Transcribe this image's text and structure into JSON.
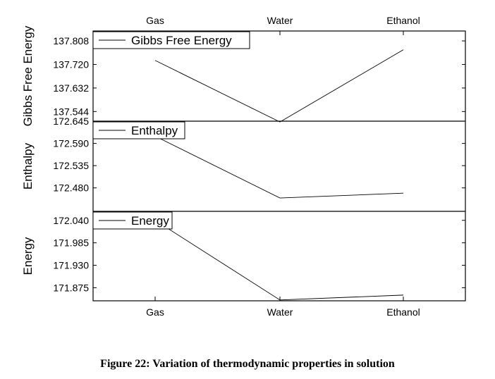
{
  "caption": "Figure 22: Variation of thermodynamic properties in solution",
  "chart_data": {
    "type": "line",
    "categories": [
      "Gas",
      "Water",
      "Ethanol"
    ],
    "top_xlabels": [
      "Gas",
      "Water",
      "Ethanol"
    ],
    "bottom_xlabels": [
      "Gas",
      "Water",
      "Ethanol"
    ],
    "panels": [
      {
        "ylabel": "Gibbs Free Energy",
        "legend": "Gibbs Free Energy",
        "yticks": [
          "137.808",
          "137.720",
          "137.632",
          "137.544"
        ],
        "ytick_values": [
          137.808,
          137.72,
          137.632,
          137.544
        ],
        "ylim": [
          137.508,
          137.845
        ],
        "values": [
          137.735,
          137.505,
          137.775
        ]
      },
      {
        "ylabel": "Enthalpy",
        "legend": "Enthalpy",
        "yticks": [
          "172.645",
          "172.590",
          "172.535",
          "172.480"
        ],
        "ytick_values": [
          172.645,
          172.59,
          172.535,
          172.48
        ],
        "ylim": [
          172.422,
          172.645
        ],
        "values": [
          172.608,
          172.455,
          172.467
        ]
      },
      {
        "ylabel": "Energy",
        "legend": "Energy",
        "yticks": [
          "172.040",
          "171.985",
          "171.930",
          "171.875"
        ],
        "ytick_values": [
          172.04,
          171.985,
          171.93,
          171.875
        ],
        "ylim": [
          171.843,
          172.062
        ],
        "values": [
          172.04,
          171.845,
          171.857
        ]
      }
    ]
  }
}
